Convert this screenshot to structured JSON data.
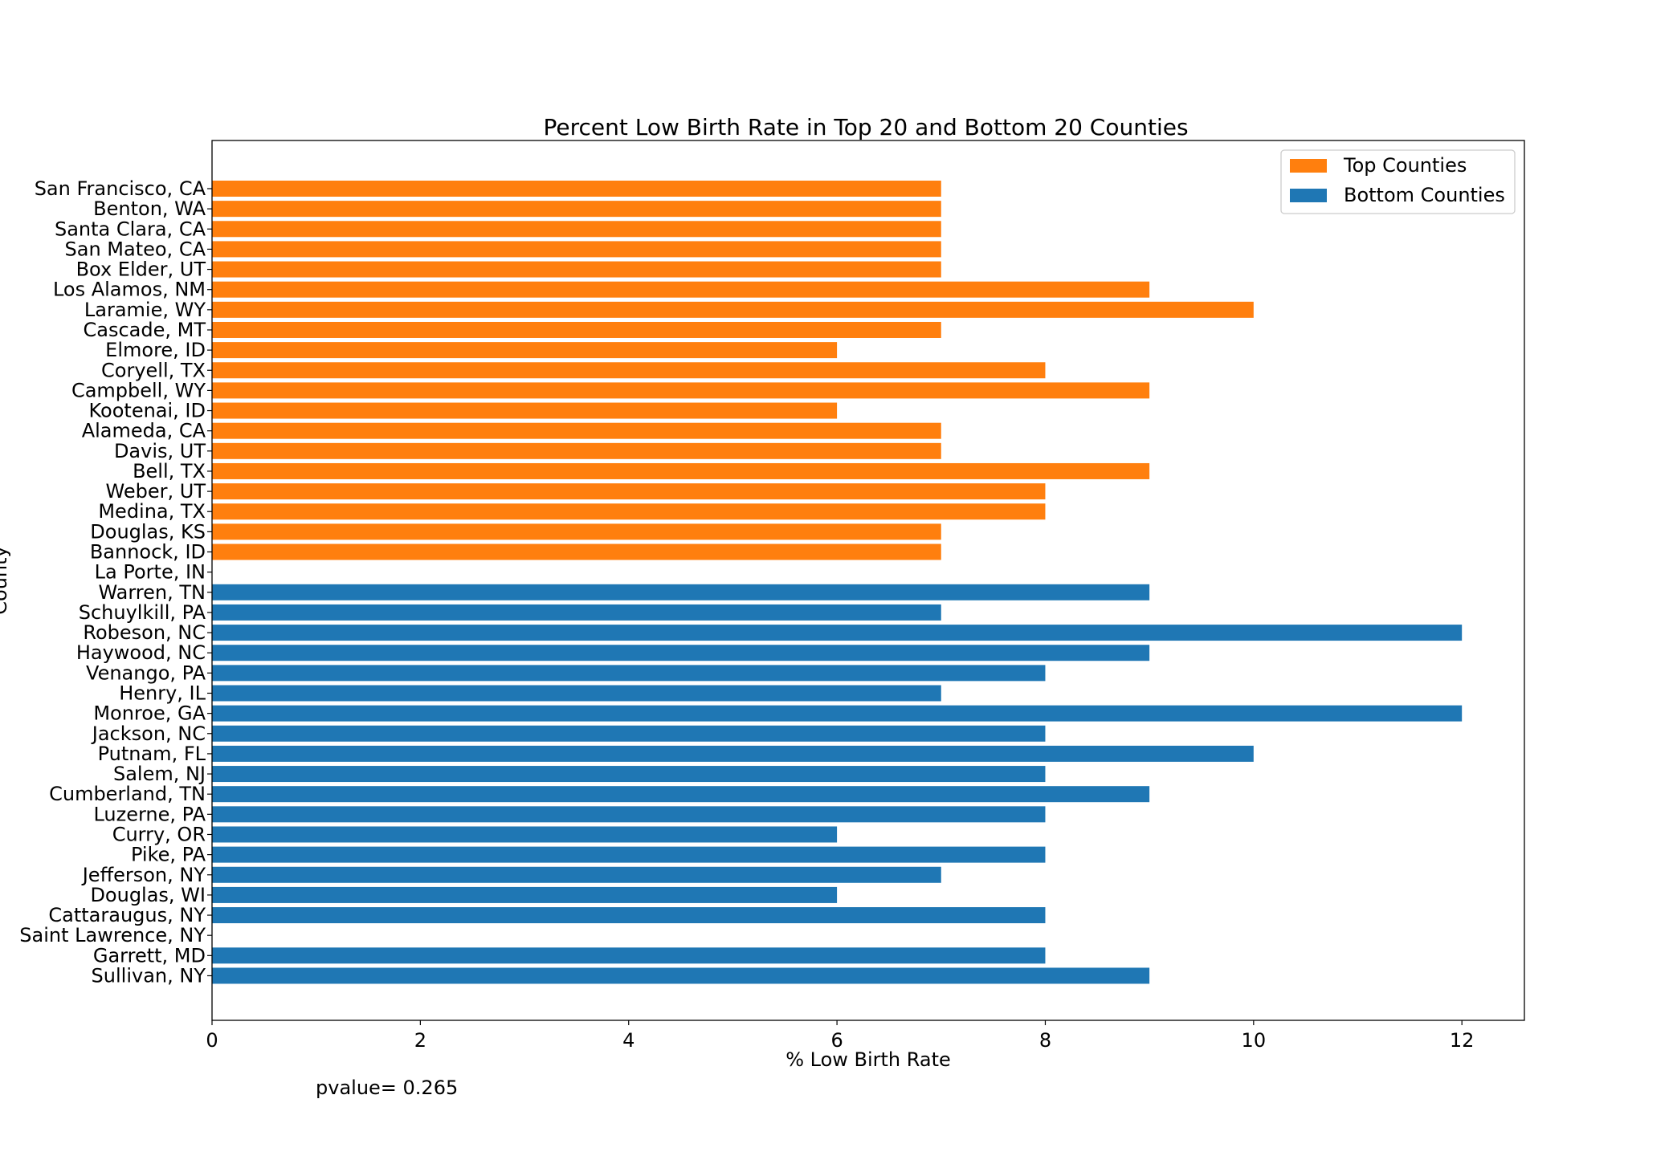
{
  "chart_data": {
    "type": "bar",
    "orientation": "horizontal",
    "title": "Percent Low Birth Rate in Top 20 and Bottom 20 Counties",
    "xlabel": "% Low Birth Rate",
    "ylabel": "County",
    "xlim": [
      0,
      12.6
    ],
    "xticks": [
      0,
      2,
      4,
      6,
      8,
      10,
      12
    ],
    "grid": false,
    "legend_position": "top-right",
    "annotation": "pvalue= 0.265",
    "series": [
      {
        "name": "Top Counties",
        "color": "#ff7f0e",
        "categories": [
          "San Francisco, CA",
          "Benton, WA",
          "Santa Clara, CA",
          "San Mateo, CA",
          "Box Elder, UT",
          "Los Alamos, NM",
          "Laramie, WY",
          "Cascade, MT",
          "Elmore, ID",
          "Coryell, TX",
          "Campbell, WY",
          "Kootenai, ID",
          "Alameda, CA",
          "Davis, UT",
          "Bell, TX",
          "Weber, UT",
          "Medina, TX",
          "Douglas, KS",
          "Bannock, ID",
          "La Porte, IN"
        ],
        "values": [
          7,
          7,
          7,
          7,
          7,
          9,
          10,
          7,
          6,
          8,
          9,
          6,
          7,
          7,
          9,
          8,
          8,
          7,
          7,
          0
        ]
      },
      {
        "name": "Bottom Counties",
        "color": "#1f77b4",
        "categories": [
          "Warren, TN",
          "Schuylkill, PA",
          "Robeson, NC",
          "Haywood, NC",
          "Venango, PA",
          "Henry, IL",
          "Monroe, GA",
          "Jackson, NC",
          "Putnam, FL",
          "Salem, NJ",
          "Cumberland, TN",
          "Luzerne, PA",
          "Curry, OR",
          "Pike, PA",
          "Jefferson, NY",
          "Douglas, WI",
          "Cattaraugus, NY",
          "Saint Lawrence, NY",
          "Garrett, MD",
          "Sullivan, NY"
        ],
        "values": [
          9,
          7,
          12,
          9,
          8,
          7,
          12,
          8,
          10,
          8,
          9,
          8,
          6,
          8,
          7,
          6,
          8,
          0,
          8,
          9
        ]
      }
    ]
  }
}
